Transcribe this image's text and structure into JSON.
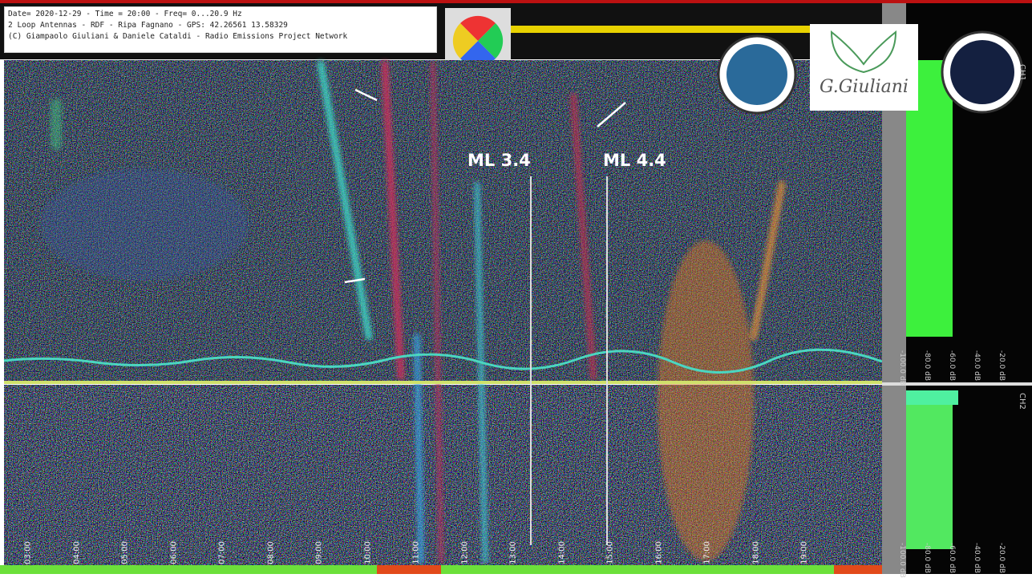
{
  "header": {
    "lines": [
      "Date= 2020-12-29 - Time = 20:00 - Freq= 0...20.9 Hz",
      "2 Loop Antennas - RDF - Ripa  Fagnano - GPS: 42.26561 13.58329",
      "(C) Giampaolo Giuliani & Daniele Cataldi - Radio Emissions Project Network"
    ]
  },
  "annotations": [
    "ML 3.4",
    "ML 4.4"
  ],
  "logo": {
    "text": "G.Giuliani"
  },
  "time_labels": [
    "03:00",
    "04:00",
    "05:00",
    "06:00",
    "07:00",
    "08:00",
    "09:00",
    "10:00",
    "11:00",
    "12:00",
    "13:00",
    "14:00",
    "15:00",
    "16:00",
    "17:00",
    "18:00",
    "19:00"
  ],
  "side_panel": {
    "channels": [
      "CH1",
      "CH2"
    ],
    "levels": [
      "-100.0 dB",
      "-80.0 dB",
      "-60.0 dB",
      "-40.0 dB",
      "-20.0 dB"
    ]
  }
}
